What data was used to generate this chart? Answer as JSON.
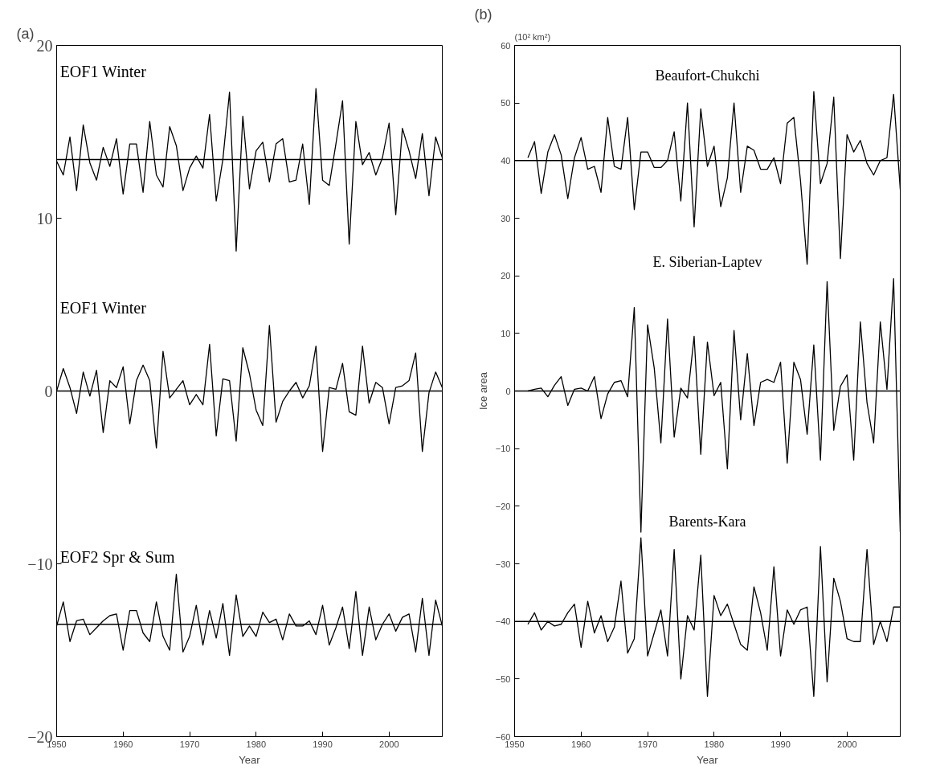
{
  "chart_data": [
    {
      "type": "line",
      "title": "(a)",
      "xlabel": "Year",
      "xlim": [
        1950,
        2008
      ],
      "xticks": [
        1950,
        1960,
        1970,
        1980,
        1990,
        2000
      ],
      "ylim": [
        -20,
        20
      ],
      "yticks": [
        -20,
        -10,
        0,
        10,
        20
      ],
      "grid": false,
      "x": [
        1950,
        1951,
        1952,
        1953,
        1954,
        1955,
        1956,
        1957,
        1958,
        1959,
        1960,
        1961,
        1962,
        1963,
        1964,
        1965,
        1966,
        1967,
        1968,
        1969,
        1970,
        1971,
        1972,
        1973,
        1974,
        1975,
        1976,
        1977,
        1978,
        1979,
        1980,
        1981,
        1982,
        1983,
        1984,
        1985,
        1986,
        1987,
        1988,
        1989,
        1990,
        1991,
        1992,
        1993,
        1994,
        1995,
        1996,
        1997,
        1998,
        1999,
        2000,
        2001,
        2002,
        2003,
        2004,
        2005,
        2006,
        2007,
        2008
      ],
      "series": [
        {
          "name": "EOF1  Winter",
          "color": "#000000",
          "values": [
            13.3,
            12.5,
            14.7,
            11.6,
            15.4,
            13.2,
            12.2,
            14.1,
            13.0,
            14.6,
            11.4,
            14.3,
            14.3,
            11.5,
            15.6,
            12.5,
            11.8,
            15.3,
            14.2,
            11.6,
            12.9,
            13.6,
            12.9,
            16.0,
            11.0,
            13.4,
            17.3,
            8.1,
            15.9,
            11.7,
            13.9,
            14.4,
            12.1,
            14.3,
            14.6,
            12.1,
            12.2,
            14.3,
            10.8,
            17.5,
            12.2,
            11.9,
            14.3,
            16.8,
            8.5,
            15.6,
            13.1,
            13.8,
            12.5,
            13.5,
            15.5,
            10.2,
            15.2,
            13.9,
            12.3,
            14.9,
            11.3,
            14.7,
            13.5
          ]
        },
        {
          "name": "EOF1  Winter",
          "color": "#000000",
          "values": [
            0,
            1.3,
            0.2,
            -1.3,
            1.1,
            -0.3,
            1.2,
            -2.4,
            0.6,
            0.2,
            1.4,
            -1.9,
            0.6,
            1.5,
            0.6,
            -3.3,
            2.3,
            -0.4,
            0.1,
            0.6,
            -0.8,
            -0.2,
            -0.8,
            2.7,
            -2.6,
            0.7,
            0.6,
            -2.9,
            2.5,
            1.0,
            -1.1,
            -2.0,
            3.8,
            -1.8,
            -0.6,
            0.0,
            0.5,
            -0.4,
            0.3,
            2.6,
            -3.5,
            0.2,
            0.1,
            1.6,
            -1.2,
            -1.4,
            2.6,
            -0.7,
            0.5,
            0.2,
            -1.9,
            0.2,
            0.3,
            0.6,
            2.2,
            -3.5,
            -0.1,
            1.1,
            0.2
          ]
        },
        {
          "name": "EOF2  Spr & Sum",
          "color": "#000000",
          "values": [
            -13.6,
            -12.2,
            -14.5,
            -13.3,
            -13.2,
            -14.1,
            -13.7,
            -13.3,
            -13.0,
            -12.9,
            -15.0,
            -12.7,
            -12.7,
            -14.0,
            -14.5,
            -12.2,
            -14.2,
            -15.0,
            -10.6,
            -15.1,
            -14.2,
            -12.4,
            -14.7,
            -12.7,
            -14.3,
            -12.3,
            -15.3,
            -11.8,
            -14.2,
            -13.6,
            -14.2,
            -12.8,
            -13.4,
            -13.2,
            -14.4,
            -12.9,
            -13.6,
            -13.6,
            -13.3,
            -14.1,
            -12.4,
            -14.7,
            -13.7,
            -12.5,
            -14.9,
            -11.6,
            -15.3,
            -12.5,
            -14.4,
            -13.5,
            -12.9,
            -13.9,
            -13.1,
            -12.9,
            -15.1,
            -12.0,
            -15.3,
            -12.1,
            -13.6
          ]
        }
      ],
      "ref_lines": [
        {
          "axis": "y",
          "value": 13.4,
          "color": "#000000"
        },
        {
          "axis": "y",
          "value": 0,
          "color": "#000000"
        },
        {
          "axis": "y",
          "value": -13.5,
          "color": "#000000"
        }
      ]
    },
    {
      "type": "line",
      "title": "(b)",
      "subtitle": "(10² km²)",
      "xlabel": "Year",
      "ylabel": "Ice area",
      "xlim": [
        1950,
        2008
      ],
      "xticks": [
        1950,
        1960,
        1970,
        1980,
        1990,
        2000
      ],
      "ylim": [
        -60,
        60
      ],
      "yticks": [
        -60,
        -50,
        -40,
        -30,
        -20,
        -10,
        0,
        10,
        20,
        30,
        40,
        50,
        60
      ],
      "grid": false,
      "x": [
        1952,
        1953,
        1954,
        1955,
        1956,
        1957,
        1958,
        1959,
        1960,
        1961,
        1962,
        1963,
        1964,
        1965,
        1966,
        1967,
        1968,
        1969,
        1970,
        1971,
        1972,
        1973,
        1974,
        1975,
        1976,
        1977,
        1978,
        1979,
        1980,
        1981,
        1982,
        1983,
        1984,
        1985,
        1986,
        1987,
        1988,
        1989,
        1990,
        1991,
        1992,
        1993,
        1994,
        1995,
        1996,
        1997,
        1998,
        1999,
        2000,
        2001,
        2002,
        2003,
        2004,
        2005,
        2006,
        2007,
        2008
      ],
      "series": [
        {
          "name": "Beaufort-Chukchi",
          "color": "#000000",
          "values": [
            40.5,
            43.3,
            34.3,
            41.5,
            44.5,
            41,
            33.4,
            40.5,
            44,
            38.5,
            39,
            34.5,
            47.5,
            39,
            38.5,
            47.5,
            31.5,
            41.5,
            41.5,
            38.8,
            38.8,
            40,
            45,
            33,
            50,
            28.5,
            49,
            39,
            42.5,
            32,
            37,
            50,
            34.5,
            42.5,
            41.8,
            38.5,
            38.5,
            40.5,
            36,
            46.5,
            47.5,
            36.5,
            22,
            52,
            36,
            39.5,
            51,
            23,
            44.5,
            41.5,
            43.5,
            39.5,
            37.5,
            40,
            40.5,
            51.5,
            35
          ]
        },
        {
          "name": "E. Siberian-Laptev",
          "color": "#000000",
          "values": [
            0,
            0.3,
            0.5,
            -1,
            1,
            2.5,
            -2.5,
            0.3,
            0.5,
            0,
            2.5,
            -4.8,
            -0.5,
            1.5,
            1.8,
            -1,
            14.5,
            -24.5,
            11.5,
            4,
            -9,
            12.5,
            -8,
            0.5,
            -1.2,
            9.5,
            -11,
            8.5,
            -0.8,
            1.5,
            -13.5,
            10.5,
            -5,
            6.5,
            -6,
            1.5,
            2,
            1.5,
            5,
            -12.5,
            5,
            2,
            -7.5,
            8,
            -12,
            19,
            -6.8,
            0.8,
            2.8,
            -12,
            12,
            -2,
            -9,
            12,
            0.3,
            19.5,
            -24.5
          ]
        },
        {
          "name": "Barents-Kara",
          "color": "#000000",
          "values": [
            -40.5,
            -38.5,
            -41.5,
            -40,
            -40.8,
            -40.5,
            -38.5,
            -37,
            -44.5,
            -36.5,
            -42,
            -39,
            -43.5,
            -41,
            -33,
            -45.5,
            -43,
            -25.5,
            -46,
            -42,
            -38,
            -46,
            -27.5,
            -50,
            -39,
            -41.5,
            -28.5,
            -53,
            -35.5,
            -39,
            -37,
            -40.5,
            -44,
            -45,
            -34,
            -38.5,
            -45,
            -30.5,
            -46,
            -38,
            -40.5,
            -38,
            -37.5,
            -53,
            -27,
            -50.5,
            -32.5,
            -36.5,
            -43,
            -43.5,
            -43.5,
            -27.5,
            -44,
            -40,
            -43.5,
            -37.5,
            -37.5
          ]
        }
      ],
      "ref_lines": [
        {
          "axis": "y",
          "value": 40,
          "color": "#000000"
        },
        {
          "axis": "y",
          "value": 0,
          "color": "#000000"
        },
        {
          "axis": "y",
          "value": -40,
          "color": "#000000"
        }
      ]
    }
  ]
}
